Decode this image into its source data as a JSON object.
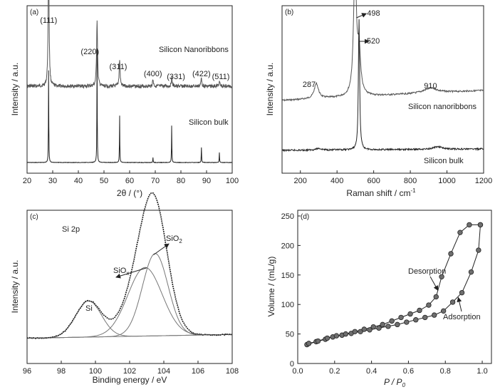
{
  "chart_data": [
    {
      "type": "line",
      "panel_label": "(a)",
      "xlabel": "2θ / (°)",
      "ylabel": "Intensity / a.u.",
      "xlim": [
        20,
        100
      ],
      "xticks": [
        20,
        30,
        40,
        50,
        60,
        70,
        80,
        90,
        100
      ],
      "series": [
        {
          "name": "Silicon Nanoribbons",
          "peaks": [
            {
              "x": 28.4,
              "h": 0.78
            },
            {
              "x": 47.3,
              "h": 0.4
            },
            {
              "x": 56.1,
              "h": 0.16
            },
            {
              "x": 69.1,
              "h": 0.04
            },
            {
              "x": 76.4,
              "h": 0.05
            },
            {
              "x": 88.0,
              "h": 0.05
            },
            {
              "x": 95.0,
              "h": 0.03
            }
          ]
        },
        {
          "name": "Silicon bulk",
          "peaks": [
            {
              "x": 28.4,
              "h": 0.55
            },
            {
              "x": 47.3,
              "h": 0.68
            },
            {
              "x": 56.1,
              "h": 0.28
            },
            {
              "x": 69.1,
              "h": 0.03
            },
            {
              "x": 76.4,
              "h": 0.22
            },
            {
              "x": 88.0,
              "h": 0.09
            },
            {
              "x": 95.0,
              "h": 0.06
            }
          ]
        }
      ],
      "annotations": [
        {
          "text": "(111)",
          "x": 28.4
        },
        {
          "text": "(220)",
          "x": 47.3
        },
        {
          "text": "(311)",
          "x": 56.1
        },
        {
          "text": "(400)",
          "x": 69.1
        },
        {
          "text": "(331)",
          "x": 76.4
        },
        {
          "text": "(422)",
          "x": 88.0
        },
        {
          "text": "(511)",
          "x": 95.0
        }
      ]
    },
    {
      "type": "line",
      "panel_label": "(b)",
      "xlabel": "Raman shift / cm",
      "xlabel_sup": "-1",
      "ylabel": "Intensity / a.u.",
      "xlim": [
        100,
        1200
      ],
      "xticks": [
        200,
        400,
        600,
        800,
        1000,
        1200
      ],
      "series": [
        {
          "name": "Silicon nanoribbons",
          "peaks": [
            {
              "x": 287,
              "w": 14,
              "h": 0.09
            },
            {
              "x": 498,
              "w": 9,
              "h": 0.79
            },
            {
              "x": 520,
              "w": 10,
              "h": 0.25
            },
            {
              "x": 910,
              "w": 45,
              "h": 0.03
            }
          ]
        },
        {
          "name": "Silicon bulk",
          "peaks": [
            {
              "x": 520,
              "w": 4,
              "h": 0.78
            },
            {
              "x": 300,
              "w": 20,
              "h": 0.01
            },
            {
              "x": 950,
              "w": 30,
              "h": 0.015
            }
          ]
        }
      ],
      "annotations": [
        {
          "text": "287",
          "x": 287
        },
        {
          "text": "498",
          "x": 498
        },
        {
          "text": "520",
          "x": 520
        },
        {
          "text": "910",
          "x": 910
        }
      ]
    },
    {
      "type": "line",
      "panel_label": "(c)",
      "title": "Si 2p",
      "xlabel": "Binding energy / eV",
      "ylabel": "Intensity / a.u.",
      "xlim": [
        96,
        108
      ],
      "xticks": [
        96,
        98,
        100,
        102,
        104,
        106,
        108
      ],
      "components": [
        {
          "name": "Si",
          "center": 99.6,
          "amp": 0.29,
          "width": 0.75
        },
        {
          "name": "SiO",
          "sub": "x",
          "center": 102.9,
          "amp": 0.55,
          "width": 1.0
        },
        {
          "name": "SiO",
          "sub": "2",
          "center": 103.5,
          "amp": 0.66,
          "width": 0.75
        }
      ],
      "baseline": {
        "start": 0.02,
        "end": 0.05
      }
    },
    {
      "type": "line",
      "panel_label": "(d)",
      "xlabel": "P / P",
      "xlabel_sub": "0",
      "ylabel": "Volume / (mL/g)",
      "xlim": [
        0.0,
        1.05
      ],
      "ylim": [
        0,
        250
      ],
      "xticks": [
        0.0,
        0.2,
        0.4,
        0.6,
        0.8,
        1.0
      ],
      "yticks": [
        0,
        50,
        100,
        150,
        200,
        250
      ],
      "series": [
        {
          "name": "Adsorption",
          "x": [
            0.05,
            0.1,
            0.15,
            0.19,
            0.24,
            0.29,
            0.34,
            0.39,
            0.44,
            0.49,
            0.54,
            0.59,
            0.64,
            0.69,
            0.74,
            0.79,
            0.84,
            0.89,
            0.94,
            0.98,
            0.99
          ],
          "y": [
            32,
            37,
            41,
            45,
            48,
            51,
            54,
            57,
            60,
            63,
            66,
            70,
            74,
            78,
            82,
            89,
            104,
            120,
            155,
            192,
            235
          ]
        },
        {
          "name": "Desorption",
          "x": [
            0.99,
            0.93,
            0.88,
            0.83,
            0.78,
            0.75,
            0.71,
            0.66,
            0.61,
            0.56,
            0.51,
            0.46,
            0.41,
            0.36,
            0.31,
            0.26,
            0.21,
            0.16,
            0.11,
            0.06
          ],
          "y": [
            235,
            235,
            222,
            186,
            147,
            113,
            99,
            90,
            84,
            78,
            72,
            66,
            62,
            58,
            54,
            50,
            47,
            43,
            38,
            34
          ]
        }
      ]
    }
  ]
}
